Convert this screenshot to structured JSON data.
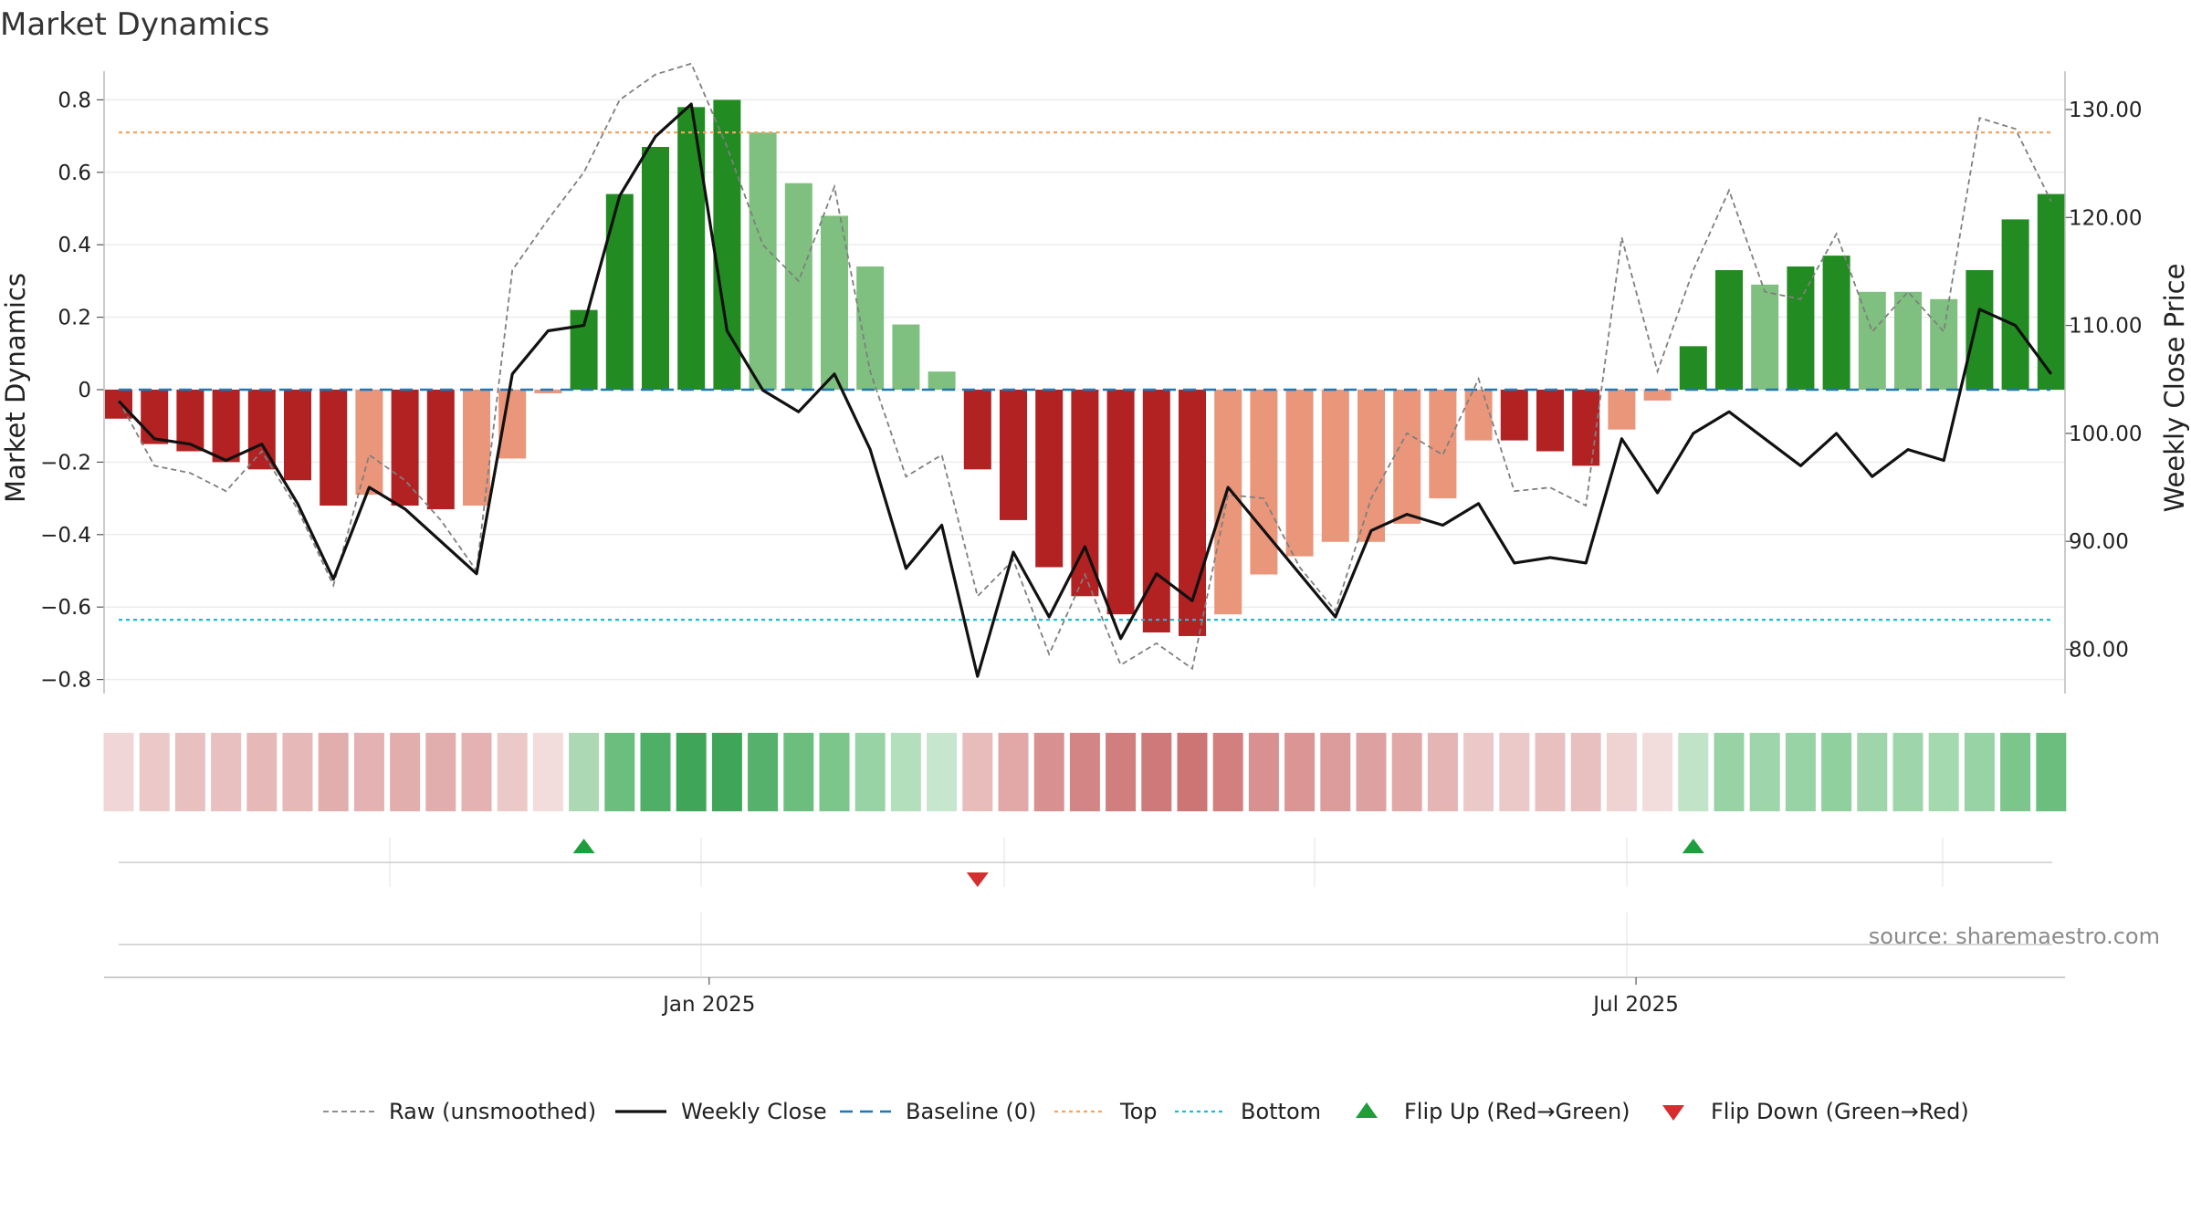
{
  "chart_data": {
    "type": "bar",
    "title": "Market Dynamics",
    "ylabel_left": "Market Dynamics",
    "ylabel_right": "Weekly Close Price",
    "ylim_left": [
      -0.88,
      0.88
    ],
    "ylim_right": [
      73.6,
      136.3
    ],
    "left_ticks": [
      "0.8",
      "0.6",
      "0.4",
      "0.2",
      "0",
      "−0.2",
      "−0.4",
      "−0.6",
      "−0.8"
    ],
    "right_ticks": [
      "130.00",
      "120.00",
      "110.00",
      "100.00",
      "90.00",
      "80.00"
    ],
    "x_ticks": [
      {
        "label": "Jan 2025",
        "week_index": 16.5
      },
      {
        "label": "Jul 2025",
        "week_index": 42.4
      }
    ],
    "weeks": 55,
    "dynamics": [
      -0.08,
      -0.15,
      -0.17,
      -0.2,
      -0.22,
      -0.25,
      -0.32,
      -0.29,
      -0.32,
      -0.33,
      -0.32,
      -0.19,
      -0.01,
      0.22,
      0.54,
      0.67,
      0.78,
      0.8,
      0.71,
      0.57,
      0.48,
      0.34,
      0.18,
      0.05,
      -0.22,
      -0.36,
      -0.49,
      -0.57,
      -0.62,
      -0.67,
      -0.68,
      -0.62,
      -0.51,
      -0.46,
      -0.42,
      -0.42,
      -0.37,
      -0.3,
      -0.14,
      -0.14,
      -0.17,
      -0.21,
      -0.11,
      -0.03,
      0.12,
      0.33,
      0.29,
      0.34,
      0.37,
      0.27,
      0.27,
      0.25,
      0.33,
      0.47,
      0.54
    ],
    "bar_colors": [
      "#b22222",
      "#b22222",
      "#b22222",
      "#b22222",
      "#b22222",
      "#b22222",
      "#b22222",
      "#e9967a",
      "#b22222",
      "#b22222",
      "#e9967a",
      "#e9967a",
      "#e9967a",
      "#228b22",
      "#228b22",
      "#228b22",
      "#228b22",
      "#228b22",
      "#7fbf7f",
      "#7fbf7f",
      "#7fbf7f",
      "#7fbf7f",
      "#7fbf7f",
      "#7fbf7f",
      "#b22222",
      "#b22222",
      "#b22222",
      "#b22222",
      "#b22222",
      "#b22222",
      "#b22222",
      "#e9967a",
      "#e9967a",
      "#e9967a",
      "#e9967a",
      "#e9967a",
      "#e9967a",
      "#e9967a",
      "#e9967a",
      "#b22222",
      "#b22222",
      "#b22222",
      "#e9967a",
      "#e9967a",
      "#228b22",
      "#228b22",
      "#7fbf7f",
      "#228b22",
      "#228b22",
      "#7fbf7f",
      "#7fbf7f",
      "#7fbf7f",
      "#228b22",
      "#228b22",
      "#228b22"
    ],
    "raw_unsmoothed": [
      -0.03,
      -0.21,
      -0.23,
      -0.28,
      -0.17,
      -0.33,
      -0.54,
      -0.18,
      -0.25,
      -0.36,
      -0.5,
      0.33,
      0.47,
      0.6,
      0.8,
      0.87,
      0.9,
      0.67,
      0.4,
      0.3,
      0.56,
      0.05,
      -0.24,
      -0.18,
      -0.57,
      -0.47,
      -0.73,
      -0.51,
      -0.76,
      -0.7,
      -0.77,
      -0.29,
      -0.3,
      -0.49,
      -0.61,
      -0.3,
      -0.12,
      -0.18,
      0.03,
      -0.28,
      -0.27,
      -0.32,
      0.42,
      0.05,
      0.33,
      0.55,
      0.27,
      0.25,
      0.43,
      0.16,
      0.27,
      0.16,
      0.75,
      0.72,
      0.52
    ],
    "weekly_close": [
      103.0,
      99.5,
      99.0,
      97.5,
      99.0,
      93.5,
      86.5,
      95.0,
      93.0,
      90.0,
      87.0,
      105.5,
      109.5,
      110.0,
      122.0,
      127.5,
      130.5,
      109.5,
      104.0,
      102.0,
      105.5,
      98.5,
      87.5,
      91.5,
      77.5,
      89.0,
      83.0,
      89.5,
      81.0,
      87.0,
      84.5,
      95.0,
      91.0,
      87.0,
      83.0,
      91.0,
      92.5,
      91.5,
      93.5,
      88.0,
      88.5,
      88.0,
      99.5,
      94.5,
      100.0,
      102.0,
      99.5,
      97.0,
      100.0,
      96.0,
      98.5,
      97.5,
      111.5,
      110.0,
      105.5
    ],
    "baseline": 0,
    "top": 0.71,
    "bottom": -0.635,
    "strip_colors": [
      "#f0d6d6",
      "#ecc9c9",
      "#e9c0c0",
      "#e9c0c0",
      "#e6b8b8",
      "#e6b8b8",
      "#e2adad",
      "#e4b2b2",
      "#e2adad",
      "#e2adad",
      "#e4b2b2",
      "#ecc9c9",
      "#f3dcdc",
      "#acd9b3",
      "#6cbe7e",
      "#4faf66",
      "#3fa659",
      "#3fa659",
      "#55b16b",
      "#6cbe7e",
      "#7cc68c",
      "#98d3a5",
      "#b3dfbd",
      "#c6e6cd",
      "#e9bcbc",
      "#e2a8a8",
      "#d99090",
      "#d38484",
      "#d07e7e",
      "#cf7a7a",
      "#cd7474",
      "#d47f7f",
      "#d99090",
      "#db9595",
      "#dd9c9c",
      "#dea1a1",
      "#e1a8a8",
      "#e5b4b4",
      "#ecc9c9",
      "#ecc9c9",
      "#e9c0c0",
      "#e9c0c0",
      "#efd3d3",
      "#f3dcdc",
      "#c1e4c8",
      "#98d3a5",
      "#9ed5aa",
      "#98d3a5",
      "#90d09e",
      "#9ed5aa",
      "#9ed5aa",
      "#a4d8af",
      "#98d3a5",
      "#7cc68c",
      "#6cbe7e"
    ],
    "flip_up_weeks": [
      13,
      44
    ],
    "flip_down_weeks": [
      24
    ],
    "colors": {
      "raw": "#7f7f7f",
      "weekly_close": "#111111",
      "baseline": "#1f77b4",
      "top": "#f4a460",
      "bottom": "#17becf",
      "flip_up": "#1e9e3c",
      "flip_down": "#d32f2f"
    },
    "legend": [
      {
        "key": "raw",
        "label": "Raw (unsmoothed)"
      },
      {
        "key": "weekly_close",
        "label": "Weekly Close"
      },
      {
        "key": "baseline",
        "label": "Baseline (0)"
      },
      {
        "key": "top",
        "label": "Top"
      },
      {
        "key": "bottom",
        "label": "Bottom"
      },
      {
        "key": "flip_up",
        "label": "Flip Up (Red→Green)"
      },
      {
        "key": "flip_down",
        "label": "Flip Down (Green→Red)"
      }
    ],
    "legend_placement": "bottom-center",
    "grid": true,
    "source": "source: sharemaestro.com"
  }
}
